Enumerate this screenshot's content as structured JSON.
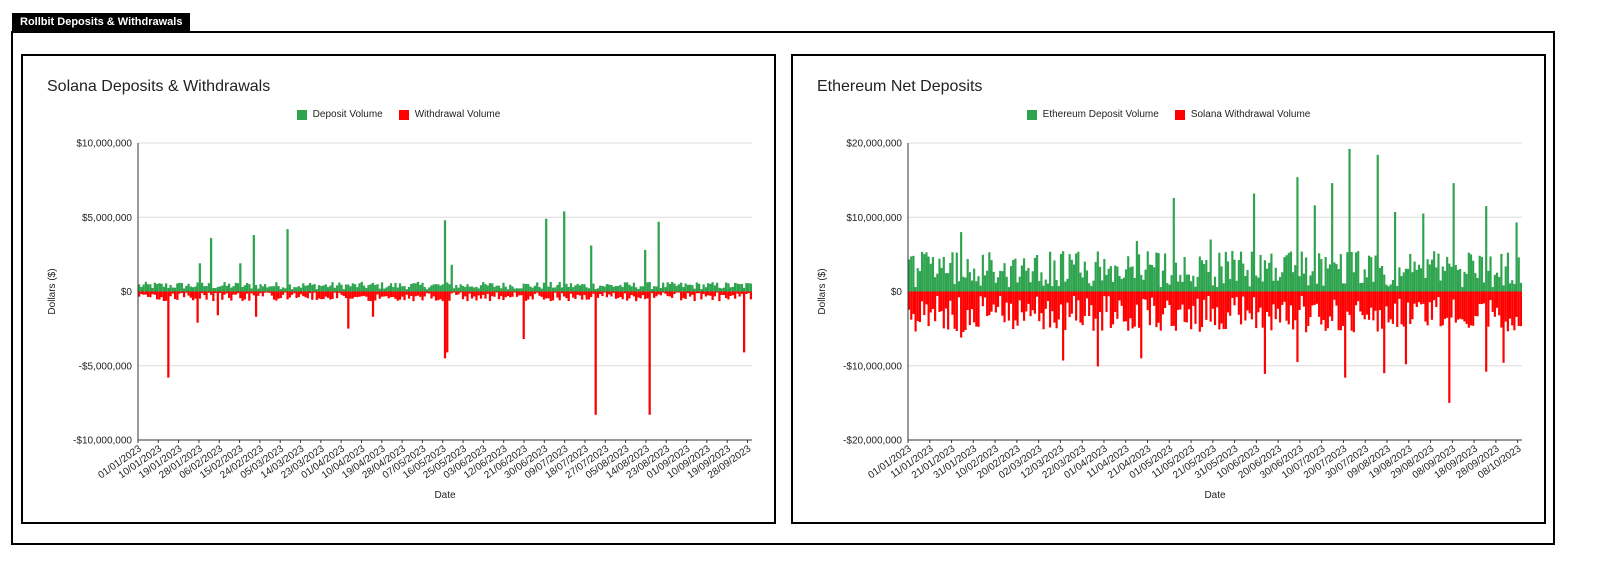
{
  "header": {
    "title": "Rollbit Deposits & Withdrawals"
  },
  "colors": {
    "deposit": "#2ea44f",
    "withdrawal": "#ff0000",
    "grid": "#dcdcdc",
    "axis": "#333333"
  },
  "chart_data": [
    {
      "type": "bar",
      "title": "Solana Deposits & Withdrawals",
      "xlabel": "Date",
      "ylabel": "Dollars ($)",
      "ylim": [
        -10000000,
        10000000
      ],
      "y_ticks": [
        "$10,000,000",
        "$5,000,000",
        "$0",
        "-$5,000,000",
        "-$10,000,000"
      ],
      "y_tick_values": [
        10000000,
        5000000,
        0,
        -5000000,
        -10000000
      ],
      "grid": true,
      "legend_position": "top-center",
      "x_start": "01/01/2023",
      "x_end": "30/09/2023",
      "x_tick_labels": [
        "01/01/2023",
        "10/01/2023",
        "19/01/2023",
        "28/01/2023",
        "06/02/2023",
        "15/02/2023",
        "24/02/2023",
        "05/03/2023",
        "14/03/2023",
        "23/03/2023",
        "01/04/2023",
        "10/04/2023",
        "19/04/2023",
        "28/04/2023",
        "07/05/2023",
        "16/05/2023",
        "25/05/2023",
        "03/06/2023",
        "12/06/2023",
        "21/06/2023",
        "30/06/2023",
        "09/07/2023",
        "18/07/2023",
        "27/07/2023",
        "05/08/2023",
        "14/08/2023",
        "23/08/2023",
        "01/09/2023",
        "10/09/2023",
        "19/09/2023",
        "28/09/2023"
      ],
      "series": [
        {
          "name": "Deposit Volume",
          "color": "#2ea44f",
          "baseline": 400000,
          "noise": 250000,
          "spikes": [
            {
              "date": "28/01/2023",
              "value": 1900000
            },
            {
              "date": "02/02/2023",
              "value": 3600000
            },
            {
              "date": "15/02/2023",
              "value": 1900000
            },
            {
              "date": "21/02/2023",
              "value": 3800000
            },
            {
              "date": "08/03/2023",
              "value": 4200000
            },
            {
              "date": "17/05/2023",
              "value": 4800000
            },
            {
              "date": "20/05/2023",
              "value": 1800000
            },
            {
              "date": "01/07/2023",
              "value": 4900000
            },
            {
              "date": "09/07/2023",
              "value": 5400000
            },
            {
              "date": "21/07/2023",
              "value": 3100000
            },
            {
              "date": "14/08/2023",
              "value": 2800000
            },
            {
              "date": "20/08/2023",
              "value": 4700000
            }
          ]
        },
        {
          "name": "Withdrawal Volume",
          "color": "#ff0000",
          "baseline": -350000,
          "noise": 300000,
          "spikes": [
            {
              "date": "14/01/2023",
              "value": -5800000
            },
            {
              "date": "27/01/2023",
              "value": -2100000
            },
            {
              "date": "05/02/2023",
              "value": -1600000
            },
            {
              "date": "22/02/2023",
              "value": -1700000
            },
            {
              "date": "04/04/2023",
              "value": -2500000
            },
            {
              "date": "15/04/2023",
              "value": -1700000
            },
            {
              "date": "17/05/2023",
              "value": -4500000
            },
            {
              "date": "18/05/2023",
              "value": -4100000
            },
            {
              "date": "21/06/2023",
              "value": -3200000
            },
            {
              "date": "23/07/2023",
              "value": -8300000
            },
            {
              "date": "16/08/2023",
              "value": -8300000
            },
            {
              "date": "27/09/2023",
              "value": -4100000
            }
          ]
        }
      ]
    },
    {
      "type": "bar",
      "title": "Ethereum Net Deposits",
      "xlabel": "Date",
      "ylabel": "Dollars ($)",
      "ylim": [
        -20000000,
        20000000
      ],
      "y_ticks": [
        "$20,000,000",
        "$10,000,000",
        "$0",
        "-$10,000,000",
        "-$20,000,000"
      ],
      "y_tick_values": [
        20000000,
        10000000,
        0,
        -10000000,
        -20000000
      ],
      "grid": true,
      "legend_position": "top-center",
      "x_start": "01/01/2023",
      "x_end": "10/10/2023",
      "x_tick_labels": [
        "01/01/2023",
        "11/01/2023",
        "21/01/2023",
        "31/01/2023",
        "10/02/2023",
        "20/02/2023",
        "02/03/2023",
        "12/03/2023",
        "22/03/2023",
        "01/04/2023",
        "11/04/2023",
        "21/04/2023",
        "01/05/2023",
        "11/05/2023",
        "21/05/2023",
        "31/05/2023",
        "10/06/2023",
        "20/06/2023",
        "30/06/2023",
        "10/07/2023",
        "20/07/2023",
        "30/07/2023",
        "09/08/2023",
        "19/08/2023",
        "29/08/2023",
        "08/09/2023",
        "18/09/2023",
        "28/09/2023",
        "08/10/2023"
      ],
      "series": [
        {
          "name": "Ethereum Deposit Volume",
          "color": "#2ea44f",
          "baseline": 3000000,
          "noise": 2500000,
          "spikes": [
            {
              "date": "10/01/2023",
              "value": 4700000
            },
            {
              "date": "25/01/2023",
              "value": 8000000
            },
            {
              "date": "16/04/2023",
              "value": 6800000
            },
            {
              "date": "03/05/2023",
              "value": 12600000
            },
            {
              "date": "20/05/2023",
              "value": 7000000
            },
            {
              "date": "09/06/2023",
              "value": 13200000
            },
            {
              "date": "29/06/2023",
              "value": 15400000
            },
            {
              "date": "07/07/2023",
              "value": 11600000
            },
            {
              "date": "15/07/2023",
              "value": 14600000
            },
            {
              "date": "23/07/2023",
              "value": 19200000
            },
            {
              "date": "05/08/2023",
              "value": 18400000
            },
            {
              "date": "13/08/2023",
              "value": 10700000
            },
            {
              "date": "26/08/2023",
              "value": 10500000
            },
            {
              "date": "09/09/2023",
              "value": 14600000
            },
            {
              "date": "24/09/2023",
              "value": 11500000
            },
            {
              "date": "08/10/2023",
              "value": 9300000
            }
          ]
        },
        {
          "name": "Solana Withdrawal Volume",
          "color": "#ff0000",
          "baseline": -3000000,
          "noise": 2500000,
          "spikes": [
            {
              "date": "13/01/2023",
              "value": -4000000
            },
            {
              "date": "25/01/2023",
              "value": -6200000
            },
            {
              "date": "13/03/2023",
              "value": -9300000
            },
            {
              "date": "29/03/2023",
              "value": -10100000
            },
            {
              "date": "18/04/2023",
              "value": -9000000
            },
            {
              "date": "14/06/2023",
              "value": -11100000
            },
            {
              "date": "29/06/2023",
              "value": -9500000
            },
            {
              "date": "21/07/2023",
              "value": -11600000
            },
            {
              "date": "08/08/2023",
              "value": -11000000
            },
            {
              "date": "18/08/2023",
              "value": -9800000
            },
            {
              "date": "07/09/2023",
              "value": -15000000
            },
            {
              "date": "24/09/2023",
              "value": -10800000
            },
            {
              "date": "02/10/2023",
              "value": -9600000
            }
          ]
        }
      ]
    }
  ]
}
